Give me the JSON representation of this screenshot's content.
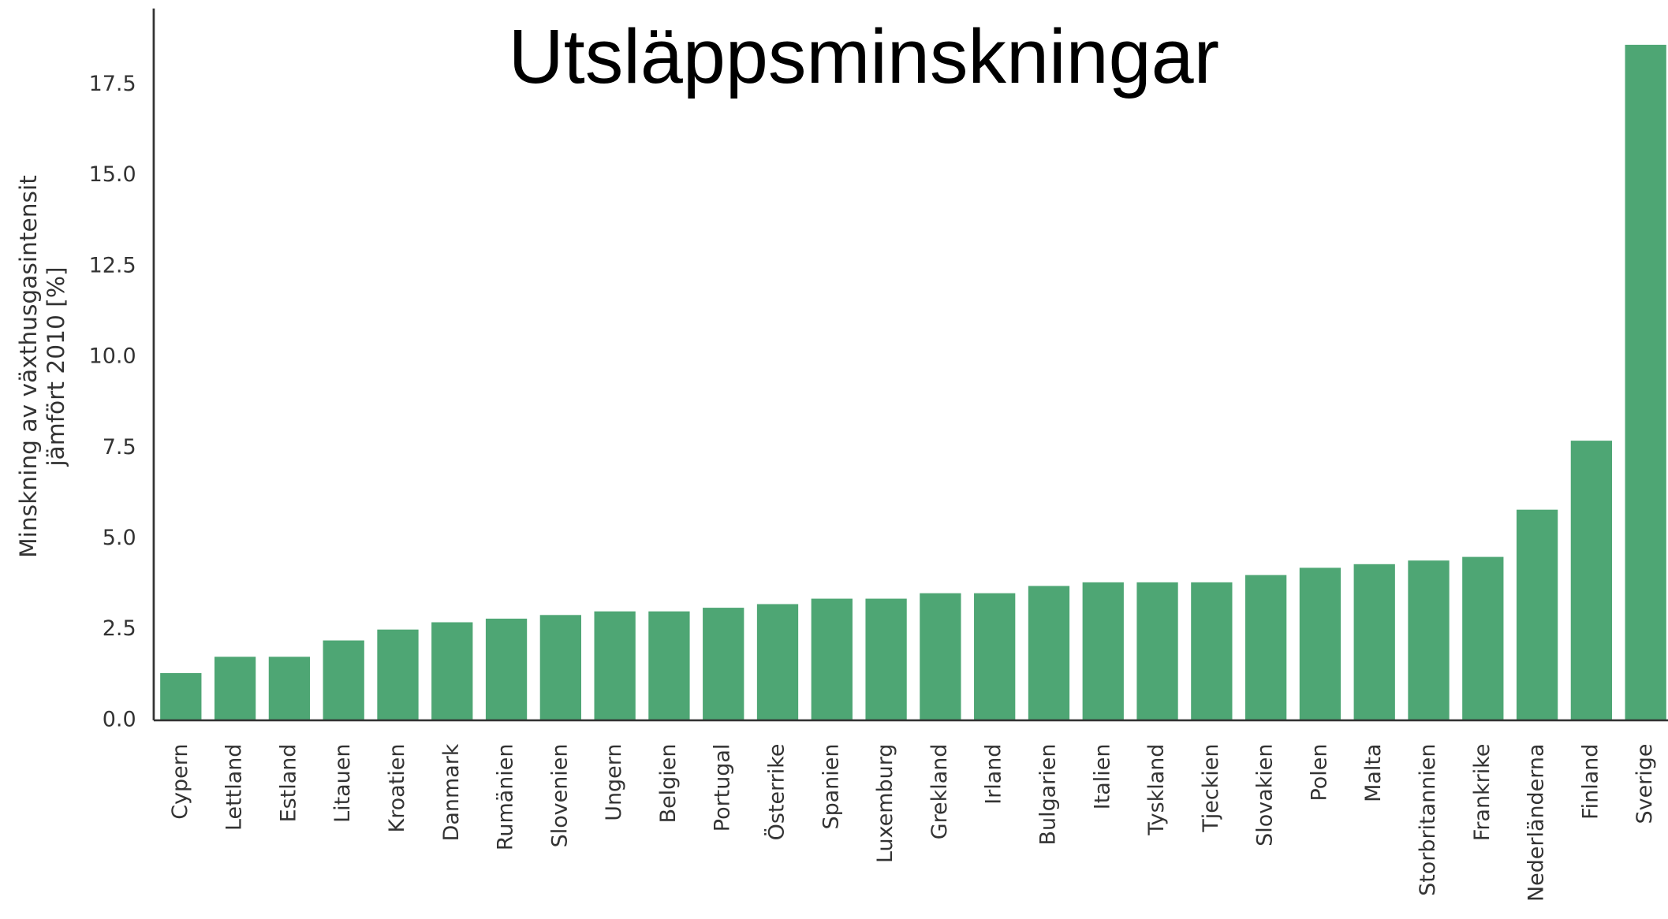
{
  "chart_data": {
    "type": "bar",
    "title": "Utsläppsminskningar",
    "ylabel": [
      "Minskning av växthusgasintensit",
      "jämfört 2010 [%]"
    ],
    "categories": [
      "Cypern",
      "Lettland",
      "Estland",
      "Litauen",
      "Kroatien",
      "Danmark",
      "Rumänien",
      "Slovenien",
      "Ungern",
      "Belgien",
      "Portugal",
      "Österrike",
      "Spanien",
      "Luxemburg",
      "Grekland",
      "Irland",
      "Bulgarien",
      "Italien",
      "Tyskland",
      "Tjeckien",
      "Slovakien",
      "Polen",
      "Malta",
      "Storbritannien",
      "Frankrike",
      "Nederländerna",
      "Finland",
      "Sverige"
    ],
    "values": [
      1.3,
      1.75,
      1.75,
      2.2,
      2.5,
      2.7,
      2.8,
      2.9,
      3.0,
      3.0,
      3.1,
      3.2,
      3.35,
      3.35,
      3.5,
      3.5,
      3.7,
      3.8,
      3.8,
      3.8,
      4.0,
      4.2,
      4.3,
      4.4,
      4.5,
      5.8,
      7.7,
      18.6
    ],
    "color": "#4ea674",
    "ylim": [
      0,
      19.6
    ],
    "yticks": [
      {
        "value": 0,
        "label": "0.0"
      },
      2.5,
      {
        "value": 5,
        "label": "5.0"
      },
      7.5,
      {
        "value": 10,
        "label": "10.0"
      },
      12.5,
      {
        "value": 15,
        "label": "15.0"
      },
      17.5
    ],
    "grid": false
  }
}
